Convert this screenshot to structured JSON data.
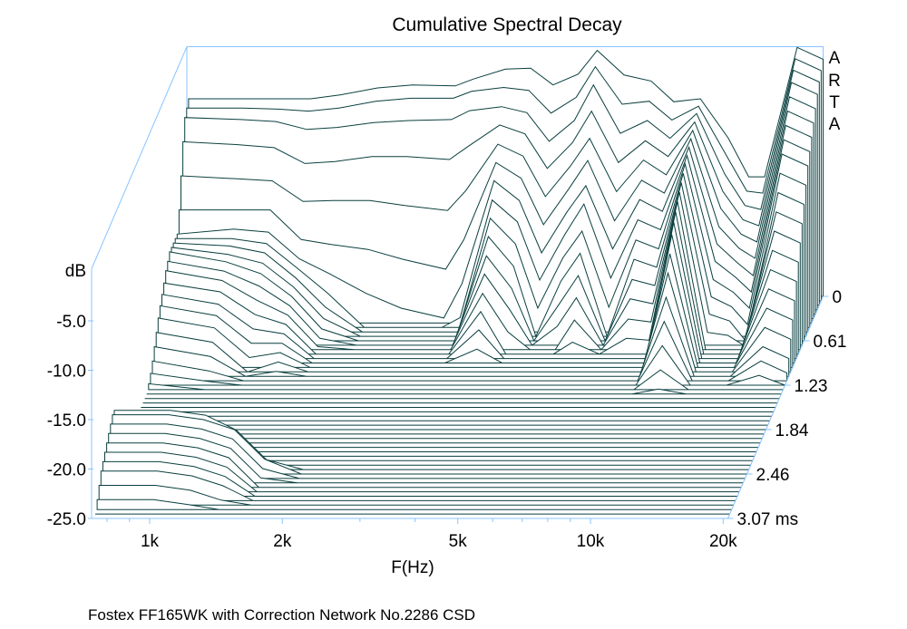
{
  "chart_data": {
    "type": "waterfall",
    "title": "Cumulative Spectral Decay",
    "xlabel": "F(Hz)",
    "ylabel": "dB",
    "watermark": "ARTA",
    "footer": "Fostex FF165WK with Correction Network No.2286 CSD",
    "x_scale": "log",
    "x_ticks_hz": [
      1000,
      2000,
      5000,
      10000,
      20000
    ],
    "x_tick_labels": [
      "1k",
      "2k",
      "5k",
      "10k",
      "20k"
    ],
    "x_minor_ticks_hz": [
      800,
      900,
      3000,
      4000,
      6000,
      7000,
      8000,
      9000
    ],
    "ylim": [
      -25,
      0
    ],
    "y_ticks": [
      -5,
      -10,
      -15,
      -20,
      -25
    ],
    "y_tick_labels": [
      "-5.0",
      "-10.0",
      "-15.0",
      "-20.0",
      "-25.0"
    ],
    "time_range_ms": [
      0,
      3.07
    ],
    "time_tick_labels": [
      "0",
      "0.61",
      "1.23",
      "1.84",
      "2.46",
      "3.07 ms"
    ],
    "colors": {
      "line": "#0a3f3f",
      "axis": "#88c4ff",
      "fill": "#ffffff"
    },
    "frequencies_hz": [
      745,
      1000,
      1200,
      1410,
      1650,
      2000,
      2400,
      3000,
      3300,
      3900,
      4450,
      5000,
      5700,
      6300,
      7250,
      8350,
      9400,
      10800,
      12500,
      13900,
      15100,
      17900,
      20500
    ],
    "slices": [
      [
        -5,
        -5,
        -5,
        -5,
        -4.6,
        -3.9,
        -3.6,
        -3.7,
        -3,
        -2,
        -1.9,
        -3.6,
        -2.5,
        -0.1,
        -2.6,
        -3.2,
        -5.3,
        -5,
        -9,
        -12.9,
        -12.9,
        0.2,
        -1
      ],
      [
        -5.5,
        -5.5,
        -5.6,
        -5.8,
        -5.5,
        -4.8,
        -4.5,
        -4.5,
        -3.8,
        -3.4,
        -3.7,
        -6,
        -4.4,
        -1.3,
        -5.1,
        -4.8,
        -6.7,
        -5.3,
        -10.3,
        -13.9,
        -14.1,
        -0.5,
        -1.7
      ],
      [
        -6,
        -6.2,
        -6.4,
        -7.2,
        -7,
        -6.5,
        -6.3,
        -6.2,
        -5.3,
        -4.9,
        -5.5,
        -8.4,
        -6.3,
        -2.7,
        -7.6,
        -6.3,
        -8.1,
        -5.6,
        -11.7,
        -14.9,
        -15.3,
        -1.2,
        -2.4
      ],
      [
        -8,
        -8.3,
        -8.6,
        -10.2,
        -10,
        -9.5,
        -9.5,
        -9.8,
        -8.5,
        -6.3,
        -7.2,
        -10.7,
        -8.1,
        -4.9,
        -10.1,
        -7.9,
        -9.5,
        -6,
        -13,
        -15.9,
        -16.5,
        -2,
        -3.2
      ],
      [
        -11,
        -11.3,
        -11.5,
        -13.6,
        -13.5,
        -13.5,
        -14,
        -14.5,
        -12.5,
        -7.8,
        -9,
        -13.1,
        -10,
        -7.2,
        -12.6,
        -9.4,
        -10.9,
        -6.4,
        -14.3,
        -16.9,
        -17.7,
        -3,
        -4.2
      ],
      [
        -14,
        -14,
        -14,
        -17,
        -17.5,
        -18,
        -19,
        -20,
        -17,
        -9.2,
        -10.8,
        -15.5,
        -11.9,
        -9,
        -15.1,
        -11,
        -12.3,
        -6.8,
        -15.7,
        -17.9,
        -18.9,
        -4,
        -5.2
      ],
      [
        -16,
        -15.5,
        -15.8,
        -18.5,
        -20,
        -22,
        -23.5,
        -24.5,
        -21,
        -10.6,
        -12.6,
        -17.9,
        -13.8,
        -11.1,
        -17.5,
        -12.5,
        -13.7,
        -7.2,
        -17,
        -18.9,
        -20.2,
        -5,
        -6.2
      ],
      [
        -16,
        -16,
        -16.5,
        -19,
        -21.5,
        -25,
        -25,
        -25,
        -24,
        -12.1,
        -14.3,
        -20.2,
        -15.6,
        -12.5,
        -20,
        -14.1,
        -15.1,
        -7.6,
        -18.3,
        -19.9,
        -21.4,
        -6,
        -7.2
      ],
      [
        -16,
        -16.3,
        -17,
        -19.5,
        -22.5,
        -25,
        -25,
        -25,
        -25,
        -13.5,
        -16.1,
        -22.6,
        -17.5,
        -14.8,
        -22.5,
        -15.7,
        -16.6,
        -8,
        -19.7,
        -21,
        -22.6,
        -7,
        -8.2
      ],
      [
        -16,
        -16.7,
        -17.6,
        -20,
        -23.2,
        -25,
        -25,
        -25,
        -25,
        -14.9,
        -17.9,
        -25,
        -19.4,
        -16.6,
        -25,
        -17.2,
        -18,
        -8.5,
        -21,
        -22,
        -23.8,
        -8.5,
        -9.7
      ],
      [
        -16,
        -17,
        -18.2,
        -20.5,
        -23.8,
        -25,
        -25,
        -25,
        -25,
        -16.4,
        -19.7,
        -25,
        -21.3,
        -18.4,
        -25,
        -18.8,
        -19.4,
        -9,
        -22.3,
        -23,
        -25,
        -10,
        -11.2
      ],
      [
        -16.5,
        -17.5,
        -19,
        -21,
        -24.3,
        -25,
        -25,
        -25,
        -25,
        -17.8,
        -21.4,
        -25,
        -23.1,
        -20.2,
        -25,
        -20.3,
        -20.8,
        -9.5,
        -23.7,
        -24,
        -25,
        -11.5,
        -12.7
      ],
      [
        -17,
        -18,
        -20,
        -21.5,
        -24.7,
        -25,
        -25,
        -25,
        -25,
        -19.3,
        -23.2,
        -25,
        -25,
        -22,
        -25,
        -21.9,
        -22.2,
        -10,
        -25,
        -25,
        -25,
        -13,
        -14.2
      ],
      [
        -17.8,
        -18.7,
        -21,
        -22,
        -25,
        -25,
        -25,
        -25,
        -25,
        -20.7,
        -25,
        -25,
        -25,
        -23.8,
        -25,
        -23.4,
        -23.6,
        -10.6,
        -25,
        -25,
        -25,
        -14.5,
        -15.7
      ],
      [
        -18.5,
        -19.5,
        -22,
        -22.5,
        -25,
        -25,
        -25,
        -25,
        -25,
        -22.1,
        -25,
        -25,
        -25,
        -25,
        -25,
        -25,
        -25,
        -11.2,
        -25,
        -25,
        -25,
        -16,
        -17.2
      ],
      [
        -19.2,
        -20.2,
        -23,
        -23,
        -25,
        -25,
        -25,
        -25,
        -25,
        -23.6,
        -25,
        -25,
        -25,
        -25,
        -25,
        -25,
        -25,
        -12,
        -25,
        -25,
        -25,
        -17.5,
        -18.7
      ],
      [
        -20,
        -21,
        -24,
        -23.5,
        -25,
        -25,
        -25,
        -25,
        -25,
        -25,
        -25,
        -25,
        -25,
        -25,
        -25,
        -25,
        -25,
        -13.5,
        -25,
        -25,
        -25,
        -19,
        -20.2
      ],
      [
        -21,
        -22,
        -25,
        -24,
        -25,
        -25,
        -25,
        -25,
        -25,
        -25,
        -25,
        -25,
        -25,
        -25,
        -25,
        -25,
        -25,
        -15,
        -25,
        -25,
        -25,
        -20.5,
        -21.7
      ],
      [
        -22,
        -23,
        -25,
        -24.5,
        -25,
        -25,
        -25,
        -25,
        -25,
        -25,
        -25,
        -25,
        -25,
        -25,
        -25,
        -25,
        -25,
        -17,
        -25,
        -25,
        -25,
        -22,
        -23.2
      ],
      [
        -23,
        -24,
        -25,
        -25,
        -25,
        -25,
        -25,
        -25,
        -25,
        -25,
        -25,
        -25,
        -25,
        -25,
        -25,
        -25,
        -25,
        -19,
        -25,
        -25,
        -25,
        -23,
        -24.2
      ],
      [
        -23.8,
        -24.6,
        -25,
        -25,
        -25,
        -25,
        -25,
        -25,
        -25,
        -25,
        -25,
        -25,
        -25,
        -25,
        -25,
        -25,
        -25,
        -21,
        -25,
        -25,
        -25,
        -24,
        -25
      ],
      [
        -24.4,
        -25,
        -25,
        -25,
        -25,
        -25,
        -25,
        -25,
        -25,
        -25,
        -25,
        -25,
        -25,
        -25,
        -25,
        -25,
        -25,
        -23,
        -25,
        -25,
        -25,
        -25,
        -25
      ],
      [
        -25,
        -25,
        -25,
        -25,
        -25,
        -25,
        -25,
        -25,
        -25,
        -25,
        -25,
        -25,
        -25,
        -25,
        -25,
        -25,
        -25,
        -24.5,
        -25,
        -25,
        -25,
        -25,
        -25
      ],
      [
        -25,
        -25,
        -25,
        -25,
        -25,
        -25,
        -25,
        -25,
        -25,
        -25,
        -25,
        -25,
        -25,
        -25,
        -25,
        -25,
        -25,
        -25,
        -25,
        -25,
        -25,
        -25,
        -25
      ],
      [
        -25,
        -25,
        -25,
        -25,
        -25,
        -25,
        -25,
        -25,
        -25,
        -25,
        -25,
        -25,
        -25,
        -25,
        -25,
        -25,
        -25,
        -25,
        -25,
        -25,
        -25,
        -25,
        -25
      ],
      [
        -25,
        -25,
        -25,
        -25,
        -25,
        -25,
        -25,
        -25,
        -25,
        -25,
        -25,
        -25,
        -25,
        -25,
        -25,
        -25,
        -25,
        -25,
        -25,
        -25,
        -25,
        -25,
        -25
      ],
      [
        -25,
        -25,
        -25,
        -25,
        -25,
        -25,
        -25,
        -25,
        -25,
        -25,
        -25,
        -25,
        -25,
        -25,
        -25,
        -25,
        -25,
        -25,
        -25,
        -25,
        -25,
        -25,
        -25
      ],
      [
        -25,
        -25,
        -25,
        -25,
        -25,
        -25,
        -25,
        -25,
        -25,
        -25,
        -25,
        -25,
        -25,
        -25,
        -25,
        -25,
        -25,
        -25,
        -25,
        -25,
        -25,
        -25,
        -25
      ],
      [
        -25,
        -25,
        -25,
        -25,
        -25,
        -25,
        -25,
        -25,
        -25,
        -25,
        -25,
        -25,
        -25,
        -25,
        -25,
        -25,
        -25,
        -25,
        -25,
        -25,
        -25,
        -25,
        -25
      ],
      [
        -25,
        -25,
        -25,
        -25,
        -25,
        -25,
        -25,
        -25,
        -25,
        -25,
        -25,
        -25,
        -25,
        -25,
        -25,
        -25,
        -25,
        -25,
        -25,
        -25,
        -25,
        -25,
        -25
      ],
      [
        -25,
        -25,
        -25,
        -25,
        -25,
        -25,
        -25,
        -25,
        -25,
        -25,
        -25,
        -25,
        -25,
        -25,
        -25,
        -25,
        -25,
        -25,
        -25,
        -25,
        -25,
        -25,
        -25
      ],
      [
        -25,
        -25,
        -25,
        -25,
        -25,
        -25,
        -25,
        -25,
        -25,
        -25,
        -25,
        -25,
        -25,
        -25,
        -25,
        -25,
        -25,
        -25,
        -25,
        -25,
        -25,
        -25,
        -25
      ],
      [
        -25,
        -25,
        -25,
        -25,
        -25,
        -25,
        -25,
        -25,
        -25,
        -25,
        -25,
        -25,
        -25,
        -25,
        -25,
        -25,
        -25,
        -25,
        -25,
        -25,
        -25,
        -25,
        -25
      ],
      [
        -25,
        -25,
        -25,
        -25,
        -25,
        -25,
        -25,
        -25,
        -25,
        -25,
        -25,
        -25,
        -25,
        -25,
        -25,
        -25,
        -25,
        -25,
        -25,
        -25,
        -25,
        -25,
        -25
      ],
      [
        -25,
        -25,
        -25,
        -25,
        -25,
        -25,
        -25,
        -25,
        -25,
        -25,
        -25,
        -25,
        -25,
        -25,
        -25,
        -25,
        -25,
        -25,
        -25,
        -25,
        -25,
        -25,
        -25
      ],
      [
        -25,
        -25,
        -25,
        -25,
        -25,
        -25,
        -25,
        -25,
        -25,
        -25,
        -25,
        -25,
        -25,
        -25,
        -25,
        -25,
        -25,
        -25,
        -25,
        -25,
        -25,
        -25,
        -25
      ],
      [
        -25,
        -25,
        -25,
        -25,
        -25,
        -25,
        -25,
        -25,
        -25,
        -25,
        -25,
        -25,
        -25,
        -25,
        -25,
        -25,
        -25,
        -25,
        -25,
        -25,
        -25,
        -25,
        -25
      ],
      [
        -24,
        -24,
        -24.5,
        -25,
        -25,
        -25,
        -25,
        -25,
        -25,
        -25,
        -25,
        -25,
        -25,
        -25,
        -25,
        -25,
        -25,
        -25,
        -25,
        -25,
        -25,
        -25,
        -25
      ],
      [
        -20,
        -20,
        -20.5,
        -22,
        -25,
        -25,
        -25,
        -25,
        -25,
        -25,
        -25,
        -25,
        -25,
        -25,
        -25,
        -25,
        -25,
        -25,
        -25,
        -25,
        -25,
        -25,
        -25
      ],
      [
        -19,
        -19,
        -19.5,
        -21,
        -24,
        -25,
        -25,
        -25,
        -25,
        -25,
        -25,
        -25,
        -25,
        -25,
        -25,
        -25,
        -25,
        -25,
        -25,
        -25,
        -25,
        -25,
        -25
      ],
      [
        -19,
        -19,
        -19.5,
        -20.5,
        -23.5,
        -25,
        -25,
        -25,
        -25,
        -25,
        -25,
        -25,
        -25,
        -25,
        -25,
        -25,
        -25,
        -25,
        -25,
        -25,
        -25,
        -25,
        -25
      ],
      [
        -19.5,
        -19.5,
        -20,
        -21,
        -24,
        -25,
        -25,
        -25,
        -25,
        -25,
        -25,
        -25,
        -25,
        -25,
        -25,
        -25,
        -25,
        -25,
        -25,
        -25,
        -25,
        -25,
        -25
      ],
      [
        -20,
        -20,
        -20.5,
        -21.5,
        -24.5,
        -25,
        -25,
        -25,
        -25,
        -25,
        -25,
        -25,
        -25,
        -25,
        -25,
        -25,
        -25,
        -25,
        -25,
        -25,
        -25,
        -25,
        -25
      ],
      [
        -20.5,
        -20.5,
        -21,
        -22,
        -25,
        -25,
        -25,
        -25,
        -25,
        -25,
        -25,
        -25,
        -25,
        -25,
        -25,
        -25,
        -25,
        -25,
        -25,
        -25,
        -25,
        -25,
        -25
      ],
      [
        -21,
        -21,
        -21.5,
        -22.5,
        -25,
        -25,
        -25,
        -25,
        -25,
        -25,
        -25,
        -25,
        -25,
        -25,
        -25,
        -25,
        -25,
        -25,
        -25,
        -25,
        -25,
        -25,
        -25
      ],
      [
        -21.5,
        -21.5,
        -22,
        -23,
        -25,
        -25,
        -25,
        -25,
        -25,
        -25,
        -25,
        -25,
        -25,
        -25,
        -25,
        -25,
        -25,
        -25,
        -25,
        -25,
        -25,
        -25,
        -25
      ],
      [
        -22,
        -22,
        -22.5,
        -23.5,
        -25,
        -25,
        -25,
        -25,
        -25,
        -25,
        -25,
        -25,
        -25,
        -25,
        -25,
        -25,
        -25,
        -25,
        -25,
        -25,
        -25,
        -25,
        -25
      ],
      [
        -23,
        -23,
        -23.5,
        -24.5,
        -25,
        -25,
        -25,
        -25,
        -25,
        -25,
        -25,
        -25,
        -25,
        -25,
        -25,
        -25,
        -25,
        -25,
        -25,
        -25,
        -25,
        -25,
        -25
      ],
      [
        -24,
        -24,
        -24.5,
        -25,
        -25,
        -25,
        -25,
        -25,
        -25,
        -25,
        -25,
        -25,
        -25,
        -25,
        -25,
        -25,
        -25,
        -25,
        -25,
        -25,
        -25,
        -25,
        -25
      ],
      [
        -25,
        -25,
        -25,
        -25,
        -25,
        -25,
        -25,
        -25,
        -25,
        -25,
        -25,
        -25,
        -25,
        -25,
        -25,
        -25,
        -25,
        -25,
        -25,
        -25,
        -25,
        -25,
        -25
      ],
      [
        -25,
        -25,
        -25,
        -25,
        -25,
        -25,
        -25,
        -25,
        -25,
        -25,
        -25,
        -25,
        -25,
        -25,
        -25,
        -25,
        -25,
        -25,
        -25,
        -25,
        -25,
        -25,
        -25
      ]
    ]
  }
}
